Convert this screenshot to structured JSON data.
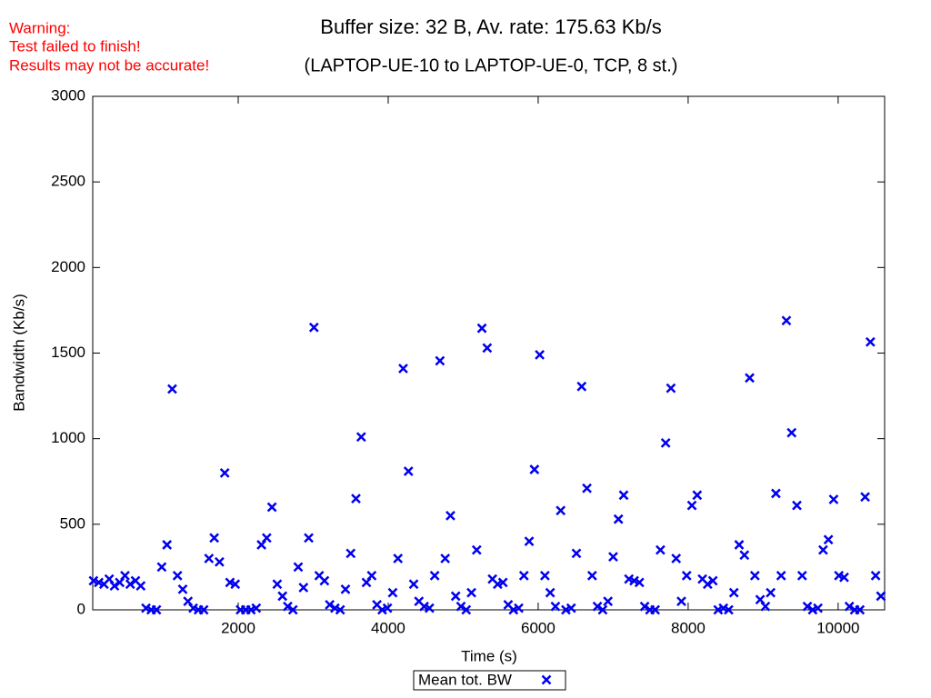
{
  "chart_data": {
    "type": "scatter",
    "warning": [
      "Warning:",
      "Test failed to finish!",
      "Results may not be accurate!"
    ],
    "title": "Buffer size: 32 B, Av. rate: 175.63 Kb/s",
    "subtitle": "(LAPTOP-UE-10 to LAPTOP-UE-0, TCP, 8 st.)",
    "x_label": "Time (s)",
    "y_label": "Bandwidth (Kb/s)",
    "xlim": [
      60,
      10620
    ],
    "ylim": [
      0,
      3000
    ],
    "xticks": [
      2000,
      4000,
      6000,
      8000,
      10000
    ],
    "yticks": [
      0,
      500,
      1000,
      1500,
      2000,
      2500,
      3000
    ],
    "legend": "bottom",
    "series": [
      {
        "name": "Mean tot. BW",
        "color": "#0000ee",
        "x": [
          70,
          140,
          210,
          280,
          350,
          420,
          490,
          560,
          630,
          700,
          770,
          840,
          910,
          980,
          1050,
          1120,
          1190,
          1260,
          1330,
          1400,
          1470,
          1540,
          1610,
          1680,
          1750,
          1820,
          1890,
          1960,
          2030,
          2100,
          2170,
          2240,
          2310,
          2380,
          2450,
          2520,
          2590,
          2660,
          2730,
          2800,
          2870,
          2940,
          3010,
          3080,
          3150,
          3220,
          3290,
          3360,
          3430,
          3500,
          3570,
          3640,
          3710,
          3780,
          3850,
          3920,
          3990,
          4060,
          4130,
          4200,
          4270,
          4340,
          4410,
          4480,
          4550,
          4620,
          4690,
          4760,
          4830,
          4900,
          4970,
          5040,
          5110,
          5180,
          5250,
          5320,
          5390,
          5460,
          5530,
          5600,
          5670,
          5740,
          5810,
          5880,
          5950,
          6020,
          6090,
          6160,
          6230,
          6300,
          6370,
          6440,
          6510,
          6580,
          6650,
          6720,
          6790,
          6860,
          6930,
          7000,
          7070,
          7140,
          7210,
          7280,
          7350,
          7420,
          7490,
          7560,
          7630,
          7700,
          7770,
          7840,
          7910,
          7980,
          8050,
          8120,
          8190,
          8260,
          8330,
          8400,
          8470,
          8540,
          8610,
          8680,
          8750,
          8820,
          8890,
          8960,
          9030,
          9100,
          9170,
          9240,
          9310,
          9380,
          9450,
          9520,
          9590,
          9660,
          9730,
          9800,
          9870,
          9940,
          10010,
          10080,
          10150,
          10220,
          10290,
          10360,
          10430,
          10500,
          10570
        ],
        "values": [
          170,
          160,
          150,
          180,
          140,
          160,
          200,
          150,
          170,
          140,
          10,
          0,
          0,
          250,
          380,
          1290,
          200,
          120,
          50,
          10,
          0,
          0,
          300,
          420,
          280,
          800,
          160,
          150,
          0,
          0,
          0,
          10,
          380,
          420,
          600,
          150,
          80,
          20,
          0,
          250,
          130,
          420,
          1650,
          200,
          170,
          30,
          10,
          0,
          120,
          330,
          650,
          1010,
          160,
          200,
          30,
          0,
          10,
          100,
          300,
          1410,
          810,
          150,
          50,
          20,
          10,
          200,
          1455,
          300,
          550,
          80,
          20,
          0,
          100,
          350,
          1645,
          1530,
          180,
          150,
          160,
          30,
          0,
          10,
          200,
          400,
          820,
          1490,
          200,
          100,
          20,
          580,
          0,
          10,
          330,
          1305,
          710,
          200,
          20,
          0,
          50,
          310,
          530,
          670,
          180,
          170,
          160,
          20,
          0,
          0,
          350,
          975,
          1295,
          300,
          50,
          200,
          610,
          670,
          180,
          150,
          170,
          0,
          10,
          0,
          100,
          380,
          320,
          1355,
          200,
          60,
          20,
          100,
          680,
          200,
          1690,
          1035,
          610,
          200,
          20,
          0,
          10,
          350,
          410,
          645,
          200,
          190,
          20,
          0,
          0,
          660,
          1565,
          200,
          80
        ]
      }
    ]
  }
}
